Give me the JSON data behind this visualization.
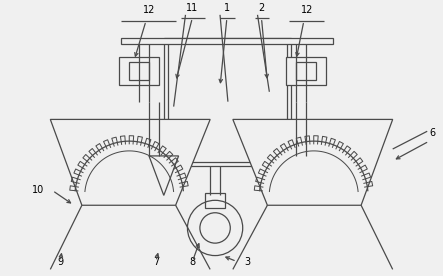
{
  "bg_color": "#f0f0f0",
  "line_color": "#4a4a4a",
  "line_width": 0.9,
  "fig_width": 4.43,
  "fig_height": 2.76,
  "dpi": 100
}
